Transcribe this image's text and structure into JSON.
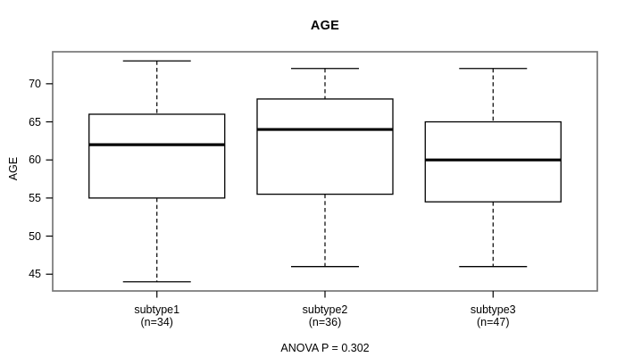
{
  "chart_data": {
    "type": "boxplot",
    "title": "AGE",
    "ylabel": "AGE",
    "caption": "ANOVA P = 0.302",
    "ylim": [
      42.8,
      74.2
    ],
    "yticks": [
      45,
      50,
      55,
      60,
      65,
      70
    ],
    "grid": false,
    "groups": [
      {
        "label": "subtype1",
        "sublabel": "(n=34)",
        "n": 34,
        "whisker_low": 44,
        "q1": 55,
        "median": 62,
        "q3": 66,
        "whisker_high": 73
      },
      {
        "label": "subtype2",
        "sublabel": "(n=36)",
        "n": 36,
        "whisker_low": 46,
        "q1": 55.5,
        "median": 64,
        "q3": 68,
        "whisker_high": 72
      },
      {
        "label": "subtype3",
        "sublabel": "(n=47)",
        "n": 47,
        "whisker_low": 46,
        "q1": 54.5,
        "median": 60,
        "q3": 65,
        "whisker_high": 72
      }
    ],
    "colors": {
      "line": "#000000",
      "plot_border": "#777777",
      "box_fill": "#ffffff",
      "background": "#ffffff"
    }
  }
}
